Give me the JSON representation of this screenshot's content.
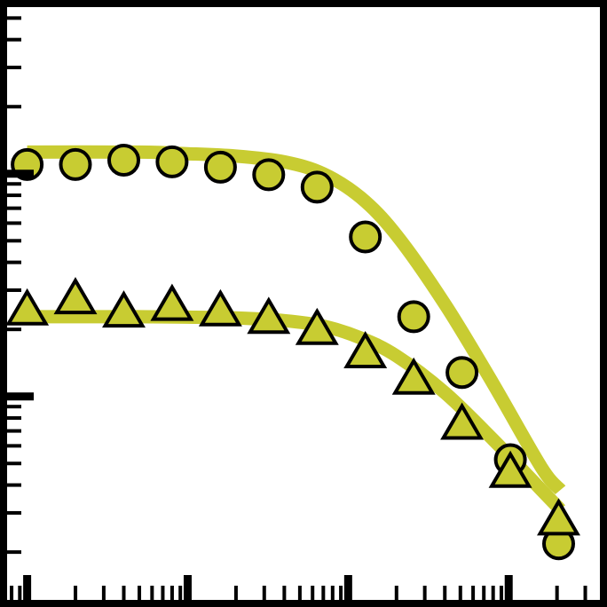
{
  "chart_data": {
    "type": "scatter",
    "title": "",
    "xlabel": "",
    "ylabel": "",
    "xscale": "log",
    "yscale": "log",
    "xlim": [
      0.0075,
      37
    ],
    "ylim": [
      0.00122,
      0.56
    ],
    "grid": false,
    "legend": "none",
    "tick_labels_shown": false,
    "colors": {
      "marker_fill": "#c8cc32",
      "curve": "#c8cc32",
      "stroke": "#000000",
      "background": "#ffffff"
    },
    "series": [
      {
        "marker": "circle",
        "x": [
          0.01,
          0.02,
          0.04,
          0.08,
          0.16,
          0.32,
          0.64,
          1.28,
          2.56,
          5.12,
          10.24,
          20.48
        ],
        "y": [
          0.11,
          0.11,
          0.115,
          0.113,
          0.107,
          0.099,
          0.087,
          0.052,
          0.0228,
          0.0128,
          0.0052,
          0.00218
        ]
      },
      {
        "marker": "triangle",
        "x": [
          0.01,
          0.02,
          0.04,
          0.08,
          0.16,
          0.32,
          0.64,
          1.28,
          2.56,
          5.12,
          10.24,
          20.48
        ],
        "y": [
          0.0241,
          0.0271,
          0.0236,
          0.0253,
          0.0239,
          0.0221,
          0.0197,
          0.0155,
          0.0118,
          0.0074,
          0.0045,
          0.00275
        ]
      }
    ],
    "curves": [
      {
        "x": [
          0.01,
          0.05,
          0.1,
          0.2,
          0.4,
          0.7,
          1.2,
          2.0,
          4.0,
          8.0,
          16.0,
          21.0
        ],
        "y": [
          0.125,
          0.125,
          0.123,
          0.12,
          0.113,
          0.1,
          0.078,
          0.053,
          0.026,
          0.0114,
          0.0048,
          0.0038
        ]
      },
      {
        "x": [
          0.01,
          0.05,
          0.1,
          0.2,
          0.4,
          0.7,
          1.2,
          2.0,
          4.0,
          8.0,
          16.0,
          21.0
        ],
        "y": [
          0.0228,
          0.0228,
          0.0227,
          0.0225,
          0.0219,
          0.0207,
          0.0183,
          0.0152,
          0.0104,
          0.0064,
          0.0038,
          0.0031
        ]
      }
    ]
  }
}
